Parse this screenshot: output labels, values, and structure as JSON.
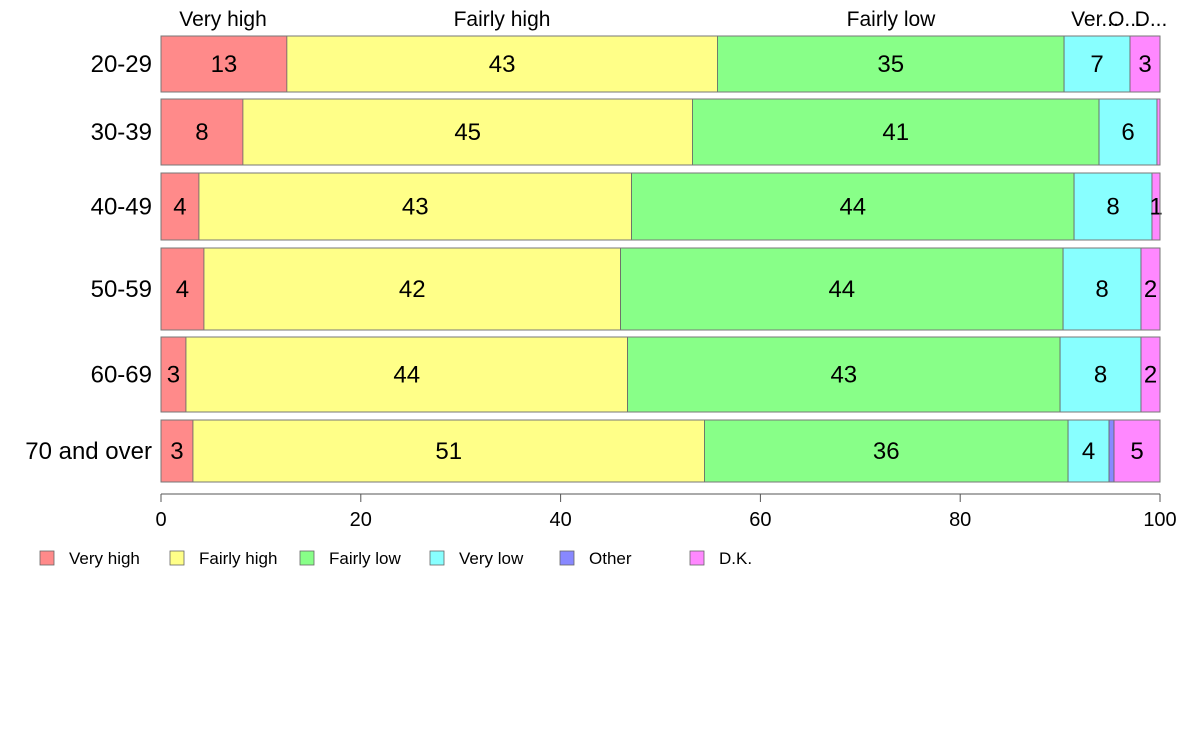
{
  "chart_data": {
    "type": "bar",
    "orientation": "horizontal",
    "stacked": true,
    "percent": true,
    "categories": [
      "20-29",
      "30-39",
      "40-49",
      "50-59",
      "60-69",
      "70 and over"
    ],
    "series": [
      {
        "name": "Very high",
        "color": "#ff8a8a",
        "values": [
          12.6,
          8.2,
          3.8,
          4.3,
          2.5,
          3.2
        ],
        "labels": [
          "13",
          "8",
          "4",
          "4",
          "3",
          "3"
        ]
      },
      {
        "name": "Fairly high",
        "color": "#ffff88",
        "values": [
          43.1,
          45.0,
          43.3,
          41.7,
          44.2,
          51.2
        ],
        "labels": [
          "43",
          "45",
          "43",
          "42",
          "44",
          "51"
        ]
      },
      {
        "name": "Fairly low",
        "color": "#88ff88",
        "values": [
          34.7,
          40.7,
          44.3,
          44.3,
          43.3,
          36.4
        ],
        "labels": [
          "35",
          "41",
          "44",
          "44",
          "43",
          "36"
        ]
      },
      {
        "name": "Very low",
        "color": "#88ffff",
        "values": [
          6.6,
          5.8,
          7.8,
          7.8,
          8.1,
          4.1
        ],
        "labels": [
          "7",
          "6",
          "8",
          "8",
          "8",
          "4"
        ]
      },
      {
        "name": "Other",
        "color": "#8888ff",
        "values": [
          0.0,
          0.0,
          0.0,
          0.0,
          0.0,
          0.5
        ],
        "labels": [
          "",
          "",
          "",
          "",
          "",
          ""
        ]
      },
      {
        "name": "D.K.",
        "color": "#ff88ff",
        "values": [
          3.0,
          0.3,
          0.8,
          1.9,
          1.9,
          4.6
        ],
        "labels": [
          "3",
          "",
          "1",
          "2",
          "2",
          "5"
        ]
      }
    ],
    "top_labels": [
      "Very high",
      "Fairly high",
      "Fairly low",
      "Ver...",
      "O...",
      "D..."
    ],
    "xlim": [
      0,
      100
    ],
    "xticks": [
      0,
      20,
      40,
      60,
      80,
      100
    ],
    "legend": {
      "position": "bottom-left",
      "items": [
        "Very high",
        "Fairly high",
        "Fairly low",
        "Very low",
        "Other",
        "D.K."
      ]
    },
    "grid": false
  }
}
